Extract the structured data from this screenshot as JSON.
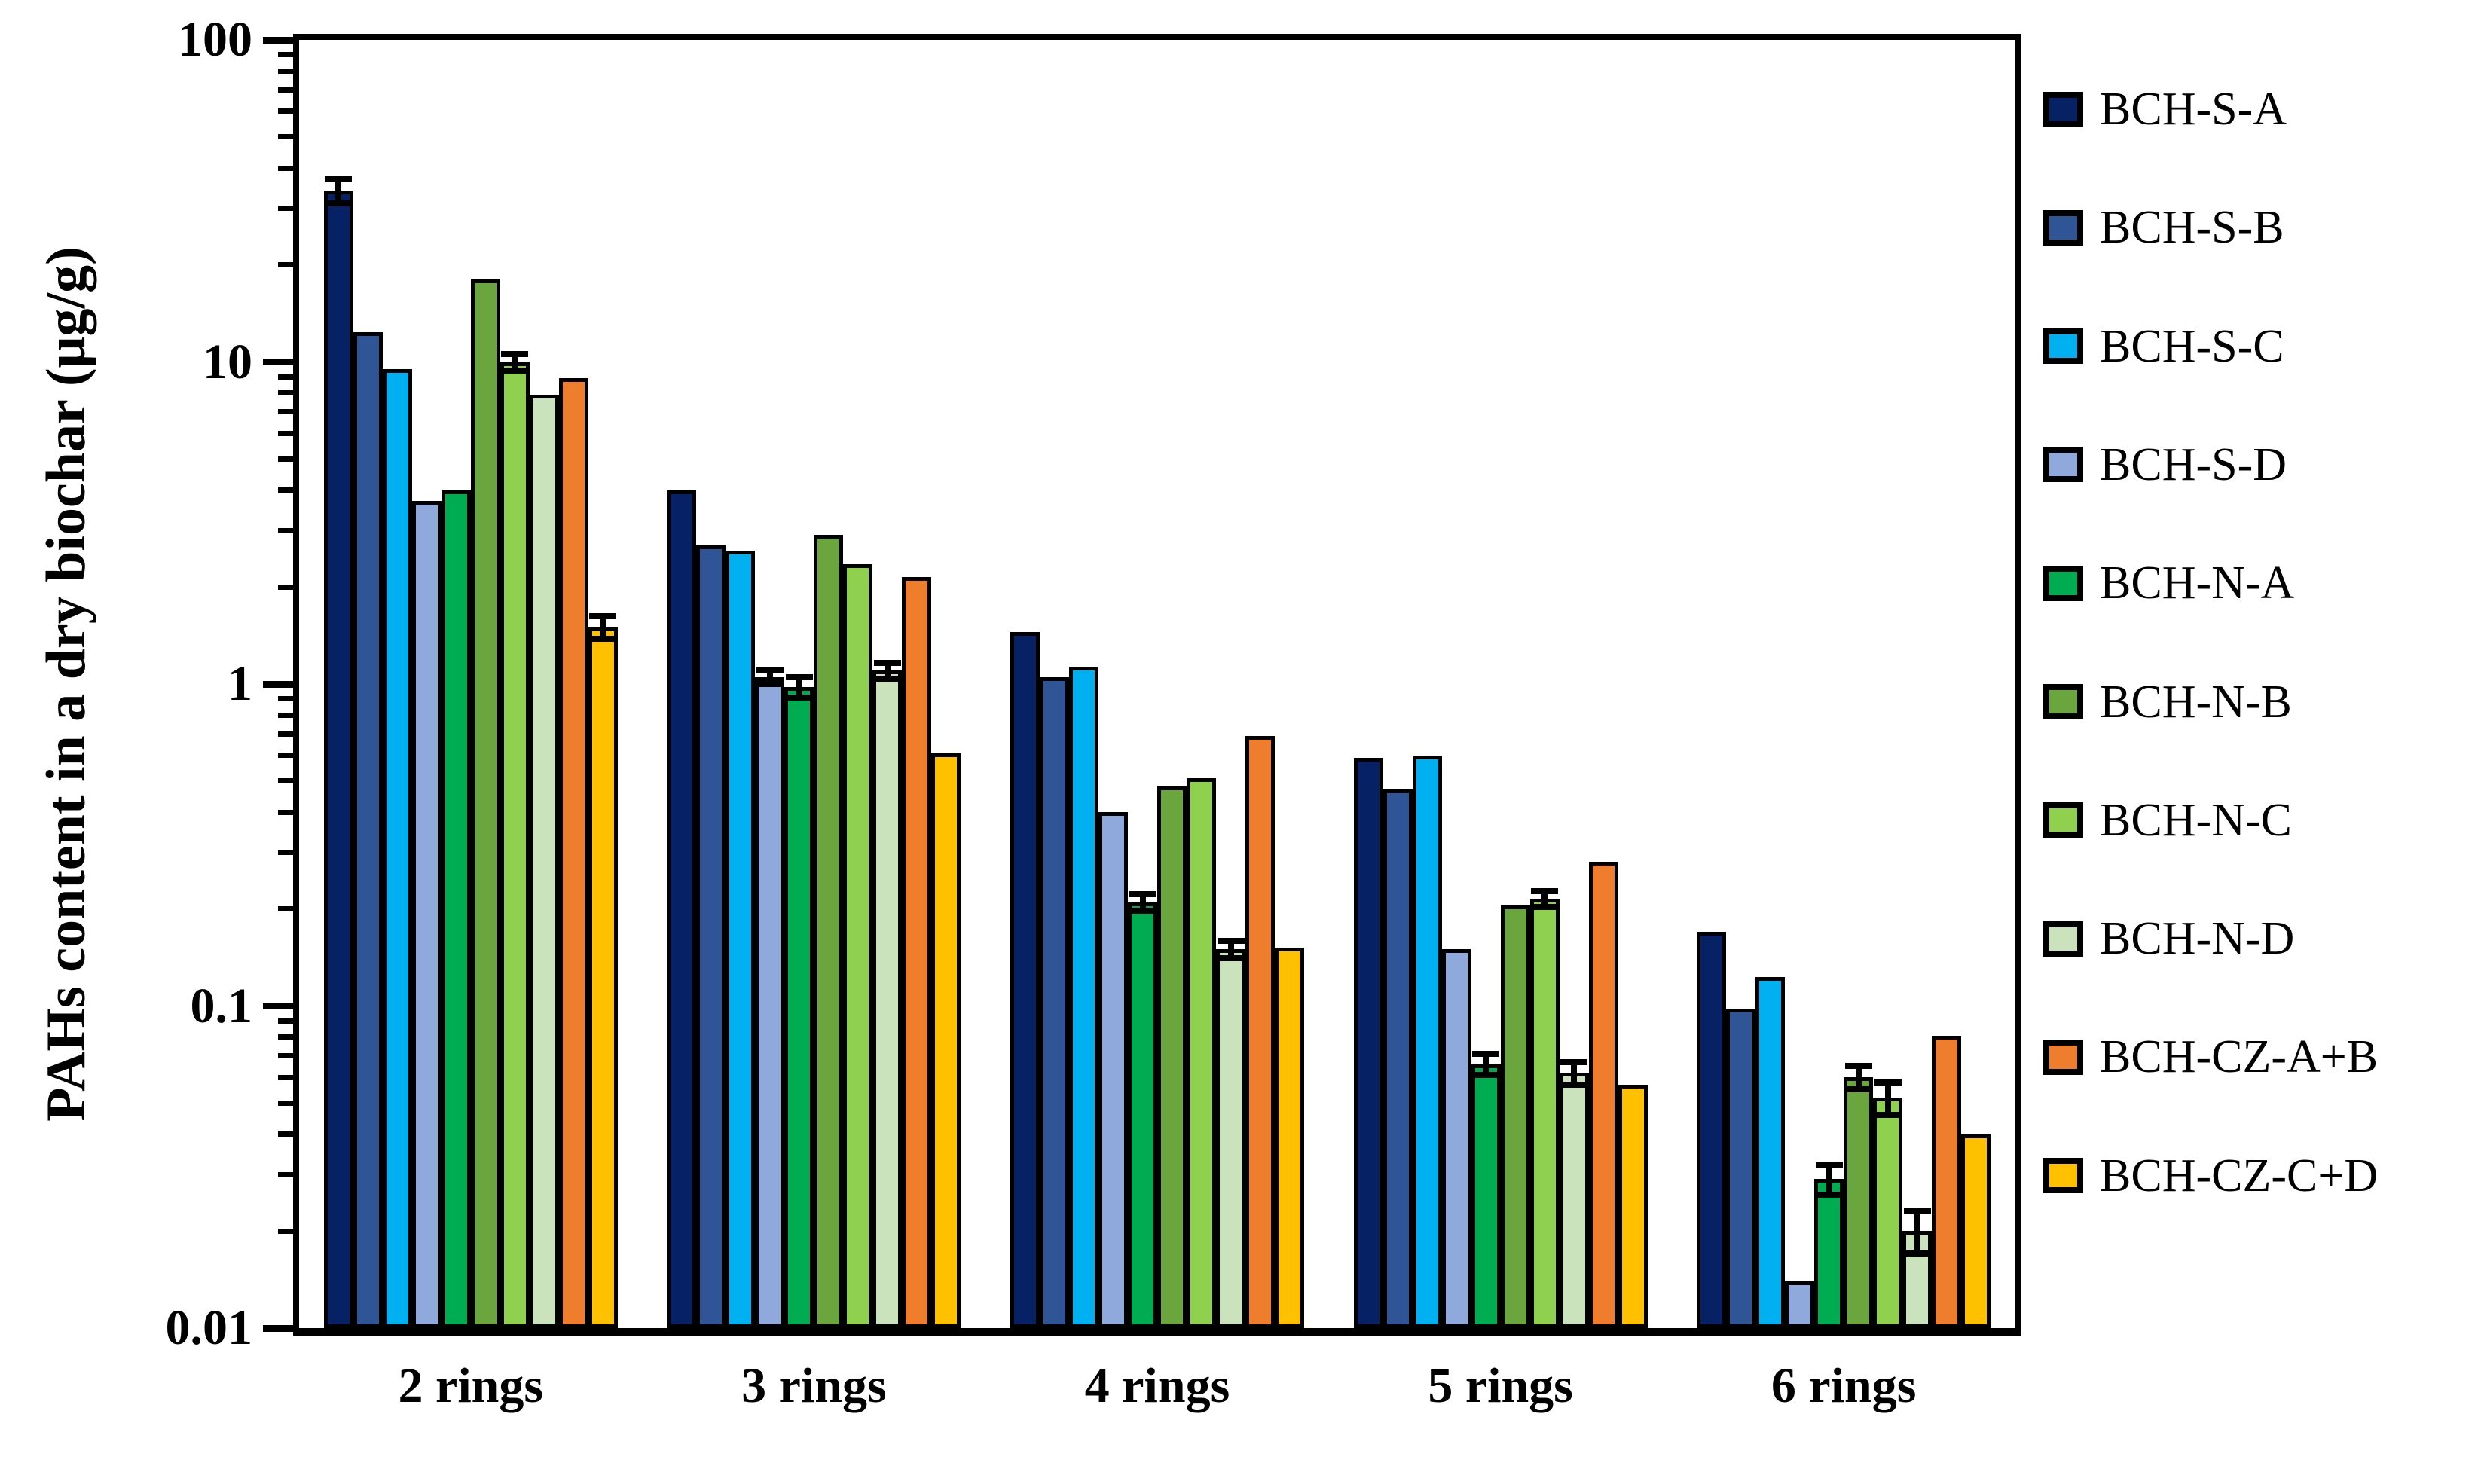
{
  "chart_data": {
    "type": "bar",
    "title": "",
    "ylabel": "PAHs content in a dry biochar (μg/g)",
    "xlabel": "",
    "y_scale": "log",
    "ylim": [
      0.01,
      100
    ],
    "grid": false,
    "legend_position": "right",
    "yticks": [
      {
        "value": 100,
        "label": "100"
      },
      {
        "value": 10,
        "label": "10"
      },
      {
        "value": 1,
        "label": "1"
      },
      {
        "value": 0.1,
        "label": "0.1"
      },
      {
        "value": 0.01,
        "label": "0.01"
      }
    ],
    "categories": [
      "2 rings",
      "3 rings",
      "4 rings",
      "5 rings",
      "6 rings"
    ],
    "series": [
      {
        "name": "BCH-S-A",
        "color": "#072264",
        "values": [
          34,
          4.0,
          1.45,
          0.59,
          0.17
        ],
        "errors": [
          3,
          0,
          0,
          0,
          0
        ]
      },
      {
        "name": "BCH-S-B",
        "color": "#2F5597",
        "values": [
          12.4,
          2.7,
          1.05,
          0.47,
          0.098
        ],
        "errors": [
          0,
          0,
          0,
          0,
          0
        ]
      },
      {
        "name": "BCH-S-C",
        "color": "#00B0F0",
        "values": [
          9.5,
          2.6,
          1.13,
          0.6,
          0.123
        ],
        "errors": [
          0,
          0,
          0,
          0,
          0
        ]
      },
      {
        "name": "BCH-S-D",
        "color": "#8FA9DC",
        "values": [
          3.7,
          1.05,
          0.4,
          0.15,
          0.014
        ],
        "errors": [
          0,
          0.05,
          0,
          0,
          0
        ]
      },
      {
        "name": "BCH-N-A",
        "color": "#00AC52",
        "values": [
          4.0,
          0.98,
          0.21,
          0.066,
          0.029
        ],
        "errors": [
          0,
          0.07,
          0.012,
          0.005,
          0.003
        ]
      },
      {
        "name": "BCH-N-B",
        "color": "#6BA53E",
        "values": [
          18,
          2.9,
          0.48,
          0.205,
          0.06
        ],
        "errors": [
          0,
          0,
          0,
          0,
          0.005
        ]
      },
      {
        "name": "BCH-N-C",
        "color": "#8FD04E",
        "values": [
          10,
          2.35,
          0.51,
          0.215,
          0.052
        ],
        "errors": [
          0.6,
          0,
          0,
          0.012,
          0.006
        ]
      },
      {
        "name": "BCH-N-D",
        "color": "#CBE3BD",
        "values": [
          7.9,
          1.1,
          0.15,
          0.062,
          0.02
        ],
        "errors": [
          0,
          0.06,
          0.009,
          0.005,
          0.003
        ]
      },
      {
        "name": "BCH-CZ-A+B",
        "color": "#EE7D2E",
        "values": [
          8.9,
          2.15,
          0.69,
          0.28,
          0.081
        ],
        "errors": [
          0,
          0,
          0,
          0,
          0
        ]
      },
      {
        "name": "BCH-CZ-C+D",
        "color": "#FFC000",
        "values": [
          1.5,
          0.61,
          0.152,
          0.057,
          0.04
        ],
        "errors": [
          0.12,
          0,
          0,
          0,
          0
        ]
      }
    ]
  }
}
